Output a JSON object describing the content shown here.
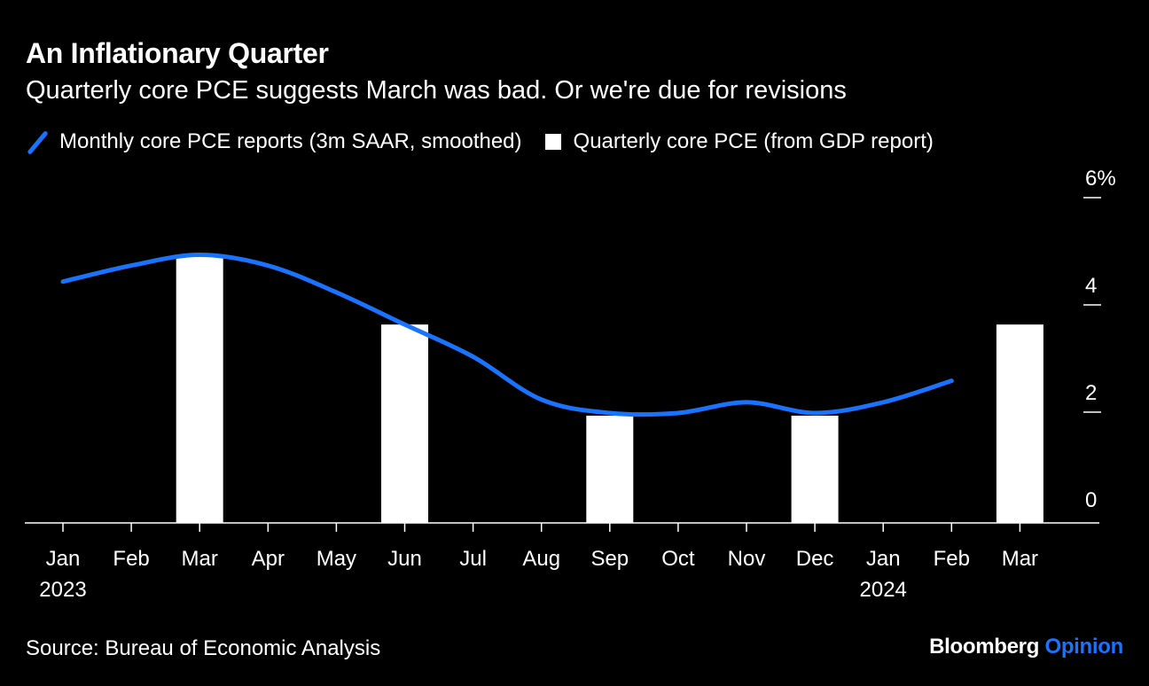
{
  "title": "An Inflationary Quarter",
  "subtitle": "Quarterly core PCE suggests March was bad. Or we're due for revisions",
  "source": "Source: Bureau of Economic Analysis",
  "brand": {
    "name": "Bloomberg",
    "suffix": "Opinion"
  },
  "colors": {
    "background": "#000000",
    "line": "#1a73ff",
    "bar": "#ffffff",
    "brand_accent": "#1a73ff"
  },
  "chart_data": {
    "type": "bar",
    "categories": [
      "Jan",
      "Feb",
      "Mar",
      "Apr",
      "May",
      "Jun",
      "Jul",
      "Aug",
      "Sep",
      "Oct",
      "Nov",
      "Dec",
      "Jan",
      "Feb",
      "Mar"
    ],
    "year_labels": [
      {
        "index": 0,
        "label": "2023"
      },
      {
        "index": 12,
        "label": "2024"
      }
    ],
    "series": [
      {
        "name": "Monthly core PCE reports (3m SAAR, smoothed)",
        "type": "line",
        "values": [
          4.5,
          4.8,
          5.0,
          4.8,
          4.3,
          3.7,
          3.1,
          2.3,
          2.05,
          2.05,
          2.25,
          2.05,
          2.25,
          2.65,
          null
        ]
      },
      {
        "name": "Quarterly core PCE (from GDP report)",
        "type": "bar",
        "values": [
          null,
          null,
          5.0,
          null,
          null,
          3.7,
          null,
          null,
          2.0,
          null,
          null,
          2.0,
          null,
          null,
          3.7
        ]
      }
    ],
    "y_ticks": [
      "0",
      "2",
      "4",
      "6%"
    ],
    "ylim": [
      0,
      6
    ],
    "y_axis_side": "right",
    "grid": false,
    "legend_position": "top-left"
  }
}
